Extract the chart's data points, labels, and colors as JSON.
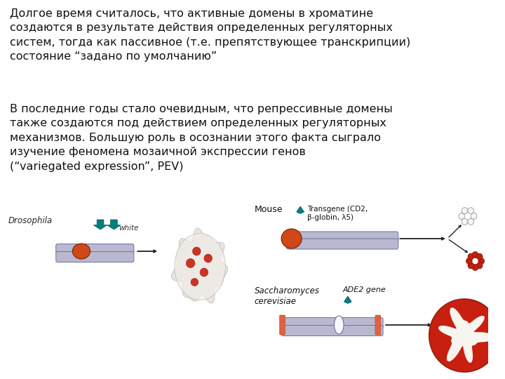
{
  "background_color": "#ffffff",
  "text_block1": "Долгое время считалось, что активные домены в хроматине\nсоздаются в результате действия определенных регуляторных\nсистем, тогда как пассивное (т.е. препятствующее транскрипции)\nсостояние “задано по умолчанию”",
  "text_block2": "В последние годы стало очевидным, что репрессивные домены\nтакже создаются под действием определенных регуляторных\nмеханизмов. Большую роль в осознании этого факта сыграло\nизучение феномена мозаичной экспрессии генов\n(“variegated expression”, PEV)",
  "font_size_text": 11.5,
  "text_color": "#111111",
  "label_drosophila": "Drosophila",
  "label_white": "white",
  "label_mouse": "Mouse",
  "label_transgene": "Transgene (CD2,\nβ-globin, λ5)",
  "label_saccharo": "Saccharomyces\ncerevisiae",
  "label_ade2": "ADE2 gene",
  "chrom_fill": "#b8b8d0",
  "chrom_edge": "#7070a0",
  "gene_orange": "#d04818",
  "teal": "#008080",
  "arrow_col": "#222222"
}
